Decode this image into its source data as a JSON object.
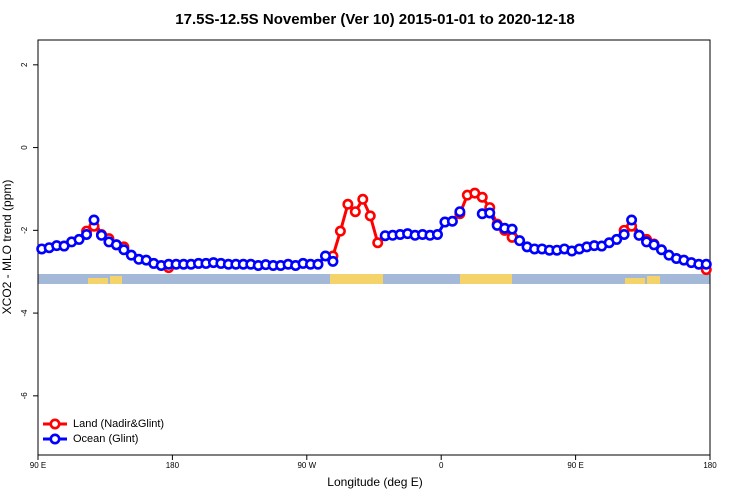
{
  "chart_data": {
    "type": "line",
    "title": "17.5S-12.5S November (Ver 10)   2015-01-01 to 2020-12-18",
    "x_label": "Longitude (deg E)",
    "y_label": "XCO2 - MLO trend (ppm)",
    "x": [
      92.5,
      97.5,
      102.5,
      107.5,
      112.5,
      117.5,
      122.5,
      127.5,
      132.5,
      137.5,
      142.5,
      147.5,
      152.5,
      157.5,
      162.5,
      167.5,
      172.5,
      177.5,
      182.5,
      187.5,
      192.5,
      197.5,
      202.5,
      207.5,
      212.5,
      217.5,
      222.5,
      227.5,
      232.5,
      237.5,
      242.5,
      247.5,
      252.5,
      257.5,
      262.5,
      267.5,
      272.5,
      277.5,
      282.5,
      287.5,
      292.5,
      297.5,
      302.5,
      307.5,
      312.5,
      317.5,
      322.5,
      327.5,
      332.5,
      337.5,
      342.5,
      347.5,
      352.5,
      357.5,
      362.5,
      367.5,
      372.5,
      377.5,
      382.5,
      387.5,
      392.5,
      397.5,
      402.5,
      407.5,
      412.5,
      417.5,
      422.5,
      427.5,
      432.5,
      437.5,
      442.5,
      447.5,
      452.5,
      457.5,
      462.5,
      467.5,
      472.5,
      477.5,
      482.5,
      487.5,
      492.5,
      497.5,
      502.5,
      507.5,
      512.5,
      517.5,
      522.5,
      527.5,
      532.5,
      537.5
    ],
    "series": [
      {
        "name": "Land (Nadir&Glint)",
        "color": "#ff0000",
        "values": [
          null,
          null,
          null,
          null,
          null,
          null,
          -2.02,
          -1.9,
          -2.1,
          -2.2,
          -2.35,
          -2.4,
          null,
          null,
          null,
          null,
          null,
          -2.9,
          null,
          null,
          null,
          null,
          null,
          null,
          null,
          null,
          null,
          null,
          null,
          null,
          null,
          null,
          null,
          null,
          null,
          null,
          null,
          null,
          null,
          -2.62,
          -2.02,
          -1.37,
          -1.55,
          -1.25,
          -1.65,
          -2.3,
          null,
          null,
          null,
          null,
          null,
          null,
          null,
          null,
          null,
          null,
          -1.6,
          -1.15,
          -1.1,
          -1.2,
          -1.45,
          -1.85,
          -2.0,
          -2.17,
          null,
          null,
          null,
          null,
          null,
          null,
          null,
          null,
          null,
          null,
          null,
          null,
          null,
          null,
          -2.0,
          -1.9,
          -2.12,
          -2.22,
          -2.33,
          null,
          null,
          null,
          null,
          null,
          null,
          -2.95
        ]
      },
      {
        "name": "Ocean (Glint)",
        "color": "#0000ff",
        "values": [
          -2.45,
          -2.42,
          -2.37,
          -2.38,
          -2.28,
          -2.22,
          -2.1,
          -1.75,
          -2.12,
          -2.28,
          -2.35,
          -2.47,
          -2.6,
          -2.7,
          -2.72,
          -2.8,
          -2.85,
          -2.82,
          -2.82,
          -2.82,
          -2.82,
          -2.8,
          -2.8,
          -2.78,
          -2.8,
          -2.82,
          -2.82,
          -2.82,
          -2.82,
          -2.85,
          -2.83,
          -2.85,
          -2.85,
          -2.82,
          -2.85,
          -2.8,
          -2.82,
          -2.82,
          -2.62,
          -2.75,
          null,
          null,
          null,
          null,
          null,
          null,
          -2.13,
          -2.12,
          -2.1,
          -2.08,
          -2.12,
          -2.1,
          -2.12,
          -2.1,
          -1.8,
          -1.78,
          -1.55,
          null,
          null,
          -1.6,
          -1.58,
          -1.88,
          -1.95,
          -1.97,
          -2.25,
          -2.4,
          -2.45,
          -2.45,
          -2.48,
          -2.48,
          -2.45,
          -2.5,
          -2.45,
          -2.4,
          -2.37,
          -2.38,
          -2.3,
          -2.22,
          -2.1,
          -1.75,
          -2.12,
          -2.28,
          -2.35,
          -2.47,
          -2.6,
          -2.68,
          -2.72,
          -2.78,
          -2.82,
          -2.82
        ]
      }
    ],
    "xlim": [
      90,
      540
    ],
    "xticks": [
      {
        "value": 90,
        "label": "90 E"
      },
      {
        "value": 180,
        "label": "180"
      },
      {
        "value": 270,
        "label": "90 W"
      },
      {
        "value": 360,
        "label": "0"
      },
      {
        "value": 450,
        "label": "90 E"
      },
      {
        "value": 540,
        "label": "180"
      }
    ],
    "ylim": [
      -7.43,
      2.6
    ],
    "yticks": [
      2,
      0,
      -2,
      -4,
      -6
    ],
    "legend": "bottomleft"
  }
}
